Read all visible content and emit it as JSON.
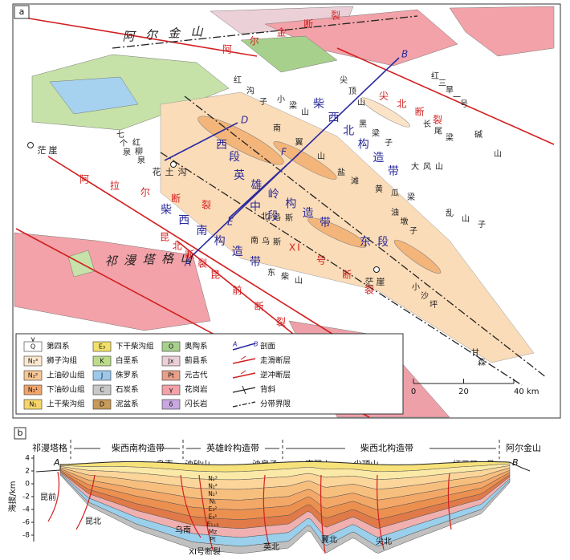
{
  "panel_a": {
    "label": "a",
    "map_labels": [
      {
        "text": "阿尔金山"
      },
      {
        "text": "阿尔金断裂"
      },
      {
        "text": "祁漫塔格山"
      },
      {
        "text": "阿拉尔断裂"
      },
      {
        "text": "昆北断裂"
      },
      {
        "text": "昆前断裂"
      },
      {
        "text": "XI号断裂"
      },
      {
        "text": "尖北断裂"
      },
      {
        "text": "柴西南构造带"
      },
      {
        "text": "英雄岭构造带"
      },
      {
        "text": "中段"
      },
      {
        "text": "西段"
      },
      {
        "text": "东段"
      },
      {
        "text": "柴西北构造带"
      },
      {
        "text": "花土沟"
      },
      {
        "text": "茫崖"
      },
      {
        "text": "茫崖"
      },
      {
        "text": "七个泉"
      },
      {
        "text": "红柳泉"
      },
      {
        "text": "红沟子"
      },
      {
        "text": "小梁山"
      },
      {
        "text": "尖顶山"
      },
      {
        "text": "黑梁子"
      },
      {
        "text": "长尾梁"
      },
      {
        "text": "红三旱一号"
      },
      {
        "text": "碱山"
      },
      {
        "text": "大风山"
      },
      {
        "text": "黄瓜梁"
      },
      {
        "text": "乱山子"
      },
      {
        "text": "南翼山"
      },
      {
        "text": "盐滩"
      },
      {
        "text": "油墩子"
      },
      {
        "text": "北乌斯"
      },
      {
        "text": "南乌斯"
      },
      {
        "text": "东柴山"
      },
      {
        "text": "小沙坪"
      },
      {
        "text": "甘森"
      }
    ],
    "profile_points": [
      "A",
      "B",
      "D",
      "E",
      "F"
    ],
    "legend": {
      "top_note": "γ",
      "items": [
        {
          "symbol": "Q",
          "name": "第四系"
        },
        {
          "symbol": "N₂³",
          "name": "狮子沟组"
        },
        {
          "symbol": "N₂²",
          "name": "上油砂山组"
        },
        {
          "symbol": "N₂¹",
          "name": "下油砂山组"
        },
        {
          "symbol": "N₁",
          "name": "上干柴沟组"
        },
        {
          "symbol": "E₃",
          "name": "下干柴沟组"
        },
        {
          "symbol": "K",
          "name": "白垩系"
        },
        {
          "symbol": "J",
          "name": "侏罗系"
        },
        {
          "symbol": "C",
          "name": "石炭系"
        },
        {
          "symbol": "D",
          "name": "泥盆系"
        },
        {
          "symbol": "O",
          "name": "奥陶系"
        },
        {
          "symbol": "Jx",
          "name": "蓟县系"
        },
        {
          "symbol": "Pt",
          "name": "元古代"
        },
        {
          "symbol": "γ",
          "name": "花岗岩"
        },
        {
          "symbol": "δ",
          "name": "闪长岩"
        }
      ],
      "line_items": [
        {
          "name": "剖面",
          "ends": [
            "A",
            "B"
          ]
        },
        {
          "name": "走滑断层"
        },
        {
          "name": "逆冲断层"
        },
        {
          "name": "背斜"
        },
        {
          "name": "分带界限"
        }
      ]
    },
    "scale_bar": {
      "ticks": [
        0,
        20,
        {
          "value": 40,
          "label": "40 km"
        }
      ]
    }
  },
  "panel_b": {
    "label": "b",
    "zones": [
      "祁漫塔格",
      "柴西南构造带",
      "英雄岭构造带",
      "柴西北构造带",
      "阿尔金山"
    ],
    "places": [
      "乌南",
      "油砂山",
      "油泉子",
      "南翼山",
      "尖顶山",
      "红三旱一号"
    ],
    "ends": [
      "A",
      "B"
    ],
    "y_axis": {
      "label": "海拔/km",
      "ticks": [
        4,
        2,
        0,
        -2,
        -4,
        -6,
        -8
      ],
      "ylim": [
        -9,
        4.5
      ]
    },
    "faults": [
      "昆前",
      "昆北",
      "乌南",
      "XI号断裂",
      "英北",
      "翼北",
      "尖北"
    ],
    "strata": [
      "N₂³",
      "N₂²",
      "N₂¹",
      "N₁",
      "E₃²",
      "E₃¹",
      "E₁₊₂",
      "Mz",
      "Pt"
    ]
  }
}
